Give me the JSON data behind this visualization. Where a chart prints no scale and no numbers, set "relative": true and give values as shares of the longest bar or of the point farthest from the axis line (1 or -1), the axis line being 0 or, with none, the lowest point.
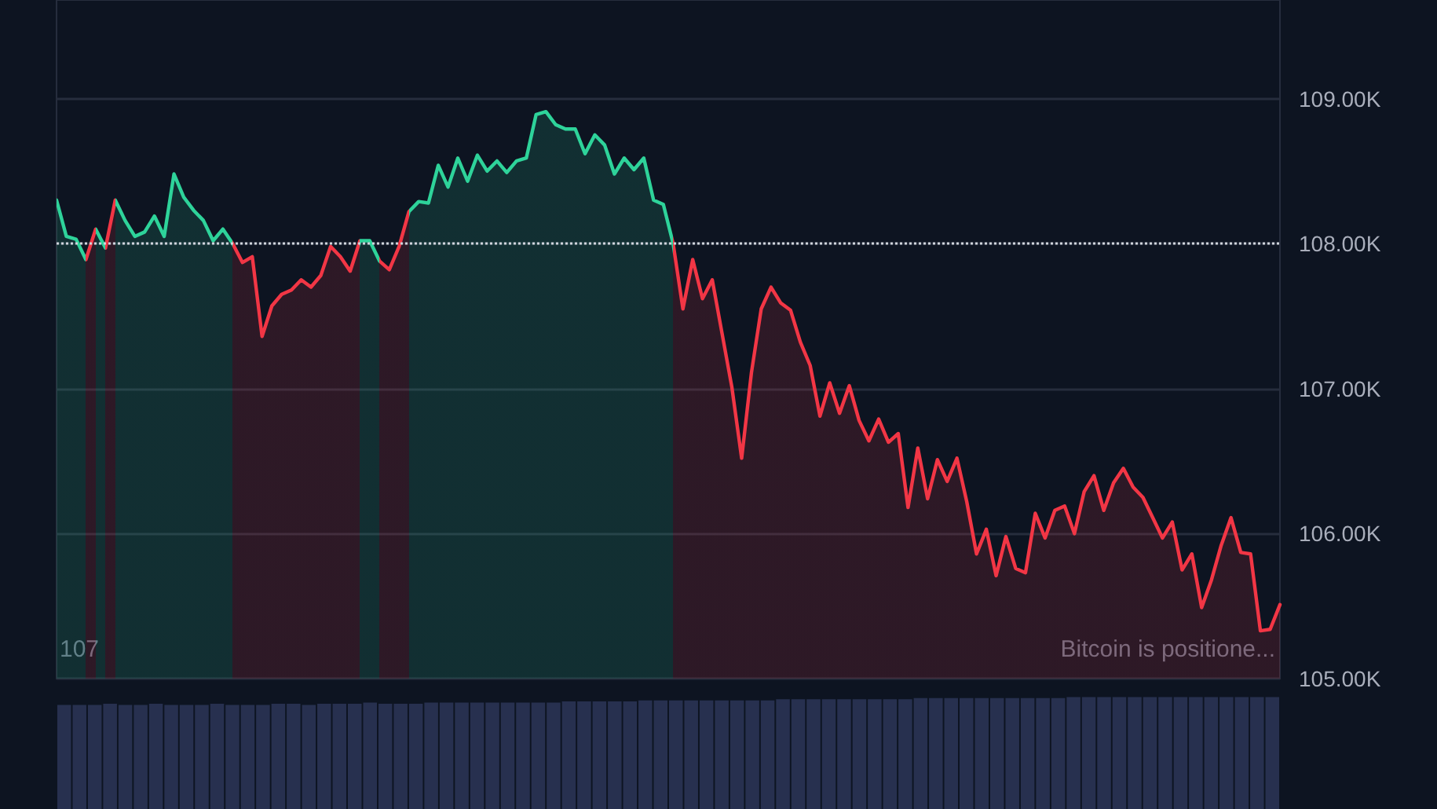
{
  "chart_data": [
    {
      "type": "area",
      "categories": [
        null,
        null,
        null,
        null,
        null,
        null,
        null,
        null,
        null,
        null,
        null,
        null,
        null,
        null,
        null,
        null,
        null,
        null,
        null,
        null,
        null,
        null,
        null,
        null,
        null,
        null,
        null,
        null,
        null,
        null,
        null,
        null,
        null,
        null,
        null,
        null,
        null,
        null,
        null,
        null,
        null,
        null,
        null,
        null,
        null,
        null,
        null,
        null,
        null,
        null,
        null,
        null,
        null,
        null,
        null,
        null,
        null,
        null,
        null,
        null,
        null,
        null,
        null,
        null,
        null,
        null,
        null,
        null,
        null,
        null,
        null,
        null,
        null,
        null,
        null,
        null,
        null,
        null,
        null,
        null,
        null,
        null,
        null,
        null,
        null,
        null,
        null,
        null,
        null,
        null,
        null,
        null,
        null,
        null,
        null,
        null,
        null,
        null,
        null,
        null,
        null,
        null,
        null,
        null,
        null,
        null,
        null,
        null,
        null,
        null,
        null,
        null,
        null,
        null,
        null,
        null,
        null,
        null,
        null,
        null,
        null,
        null,
        null,
        null,
        null,
        null
      ],
      "series": [
        {
          "values": [
            108.3,
            108.05,
            108.03,
            107.89,
            108.1,
            107.97,
            108.3,
            108.16,
            108.05,
            108.08,
            108.19,
            108.05,
            108.48,
            108.32,
            108.23,
            108.16,
            108.02,
            108.1,
            108.0,
            107.87,
            107.91,
            107.36,
            107.57,
            107.65,
            107.68,
            107.75,
            107.7,
            107.78,
            107.98,
            107.91,
            107.81,
            108.02,
            108.02,
            107.88,
            107.82,
            107.98,
            108.22,
            108.29,
            108.28,
            108.54,
            108.39,
            108.59,
            108.43,
            108.61,
            108.5,
            108.57,
            108.49,
            108.57,
            108.59,
            108.89,
            108.91,
            108.82,
            108.79,
            108.79,
            108.62,
            108.75,
            108.68,
            108.48,
            108.59,
            108.51,
            108.59,
            108.3,
            108.27,
            108.0,
            107.55,
            107.89,
            107.62,
            107.75,
            107.38,
            107.01,
            106.52,
            107.11,
            107.55,
            107.7,
            107.59,
            107.54,
            107.32,
            107.16,
            106.81,
            107.04,
            106.83,
            107.02,
            106.78,
            106.64,
            106.79,
            106.63,
            106.69,
            106.18,
            106.59,
            106.24,
            106.51,
            106.36,
            106.52,
            106.22,
            105.86,
            106.03,
            105.71,
            105.98,
            105.76,
            105.73,
            106.14,
            105.97,
            106.16,
            106.19,
            106.0,
            106.29,
            106.4,
            106.16,
            106.35,
            106.45,
            106.32,
            106.25,
            106.11,
            105.97,
            106.08,
            105.75,
            105.86,
            105.49,
            105.68,
            105.92,
            106.11,
            105.87,
            105.86,
            105.33,
            105.34,
            105.51
          ],
          "colors": [
            "#2ed39a",
            "#2ed39a",
            "#2ed39a",
            "#f23645",
            "#2ed39a",
            "#f23645",
            "#2ed39a",
            "#2ed39a",
            "#2ed39a",
            "#2ed39a",
            "#2ed39a",
            "#2ed39a",
            "#2ed39a",
            "#2ed39a",
            "#2ed39a",
            "#2ed39a",
            "#2ed39a",
            "#2ed39a",
            "#f23645",
            "#f23645",
            "#f23645",
            "#f23645",
            "#f23645",
            "#f23645",
            "#f23645",
            "#f23645",
            "#f23645",
            "#f23645",
            "#f23645",
            "#f23645",
            "#f23645",
            "#2ed39a",
            "#2ed39a",
            "#f23645",
            "#f23645",
            "#f23645",
            "#2ed39a",
            "#2ed39a",
            "#2ed39a",
            "#2ed39a",
            "#2ed39a",
            "#2ed39a",
            "#2ed39a",
            "#2ed39a",
            "#2ed39a",
            "#2ed39a",
            "#2ed39a",
            "#2ed39a",
            "#2ed39a",
            "#2ed39a",
            "#2ed39a",
            "#2ed39a",
            "#2ed39a",
            "#2ed39a",
            "#2ed39a",
            "#2ed39a",
            "#2ed39a",
            "#2ed39a",
            "#2ed39a",
            "#2ed39a",
            "#2ed39a",
            "#2ed39a",
            "#2ed39a",
            "#f23645",
            "#f23645",
            "#f23645",
            "#f23645",
            "#f23645",
            "#f23645",
            "#f23645",
            "#f23645",
            "#f23645",
            "#f23645",
            "#f23645",
            "#f23645",
            "#f23645",
            "#f23645",
            "#f23645",
            "#f23645",
            "#f23645",
            "#f23645",
            "#f23645",
            "#f23645",
            "#f23645",
            "#f23645",
            "#f23645",
            "#f23645",
            "#f23645",
            "#f23645",
            "#f23645",
            "#f23645",
            "#f23645",
            "#f23645",
            "#f23645",
            "#f23645",
            "#f23645",
            "#f23645",
            "#f23645",
            "#f23645",
            "#f23645",
            "#f23645",
            "#f23645",
            "#f23645",
            "#f23645",
            "#f23645",
            "#f23645",
            "#f23645",
            "#f23645",
            "#f23645",
            "#f23645",
            "#f23645",
            "#f23645",
            "#f23645",
            "#f23645",
            "#f23645",
            "#f23645",
            "#f23645",
            "#f23645",
            "#f23645",
            "#f23645",
            "#f23645",
            "#f23645",
            "#f23645",
            "#f23645",
            "#f23645",
            "#f23645"
          ]
        }
      ],
      "ylim": [
        105,
        109.68
      ],
      "yticks": [
        {
          "value": 105,
          "label": "105.00K"
        },
        {
          "value": 106,
          "label": "106.00K"
        },
        {
          "value": 107,
          "label": "107.00K"
        },
        {
          "value": 108,
          "label": "108.00K"
        },
        {
          "value": 109,
          "label": "109.00K"
        }
      ],
      "grid": "y",
      "tick_labels": "y",
      "ref_lines": [
        {
          "axis": "y",
          "value": 108,
          "color": "#d0d4dc",
          "line_style": "dotted"
        }
      ],
      "annotations": [
        "107",
        "Bitcoin is positione..."
      ]
    },
    {
      "type": "bar",
      "relative": true,
      "color": "#27304f",
      "categories": [
        null,
        null,
        null,
        null,
        null,
        null,
        null,
        null,
        null,
        null,
        null,
        null,
        null,
        null,
        null,
        null,
        null,
        null,
        null,
        null,
        null,
        null,
        null,
        null,
        null,
        null,
        null,
        null,
        null,
        null,
        null,
        null,
        null,
        null,
        null,
        null,
        null,
        null,
        null,
        null,
        null,
        null,
        null,
        null,
        null,
        null,
        null,
        null,
        null,
        null,
        null,
        null,
        null,
        null,
        null,
        null,
        null,
        null,
        null,
        null,
        null,
        null,
        null,
        null,
        null,
        null,
        null,
        null,
        null,
        null,
        null,
        null,
        null,
        null,
        null,
        null,
        null,
        null,
        null,
        null
      ],
      "values": [
        0.93,
        0.93,
        0.93,
        0.94,
        0.93,
        0.93,
        0.94,
        0.93,
        0.93,
        0.93,
        0.94,
        0.93,
        0.93,
        0.93,
        0.94,
        0.94,
        0.93,
        0.94,
        0.94,
        0.94,
        0.95,
        0.94,
        0.94,
        0.94,
        0.95,
        0.95,
        0.95,
        0.95,
        0.95,
        0.95,
        0.95,
        0.95,
        0.95,
        0.96,
        0.96,
        0.96,
        0.96,
        0.96,
        0.97,
        0.97,
        0.97,
        0.97,
        0.97,
        0.97,
        0.97,
        0.97,
        0.97,
        0.98,
        0.98,
        0.98,
        0.98,
        0.98,
        0.98,
        0.98,
        0.98,
        0.98,
        0.99,
        0.99,
        0.99,
        0.99,
        0.99,
        0.99,
        0.99,
        0.99,
        0.99,
        0.99,
        1,
        1,
        1,
        1,
        1,
        1,
        1,
        1,
        1,
        1,
        1,
        1,
        1,
        1
      ]
    }
  ]
}
